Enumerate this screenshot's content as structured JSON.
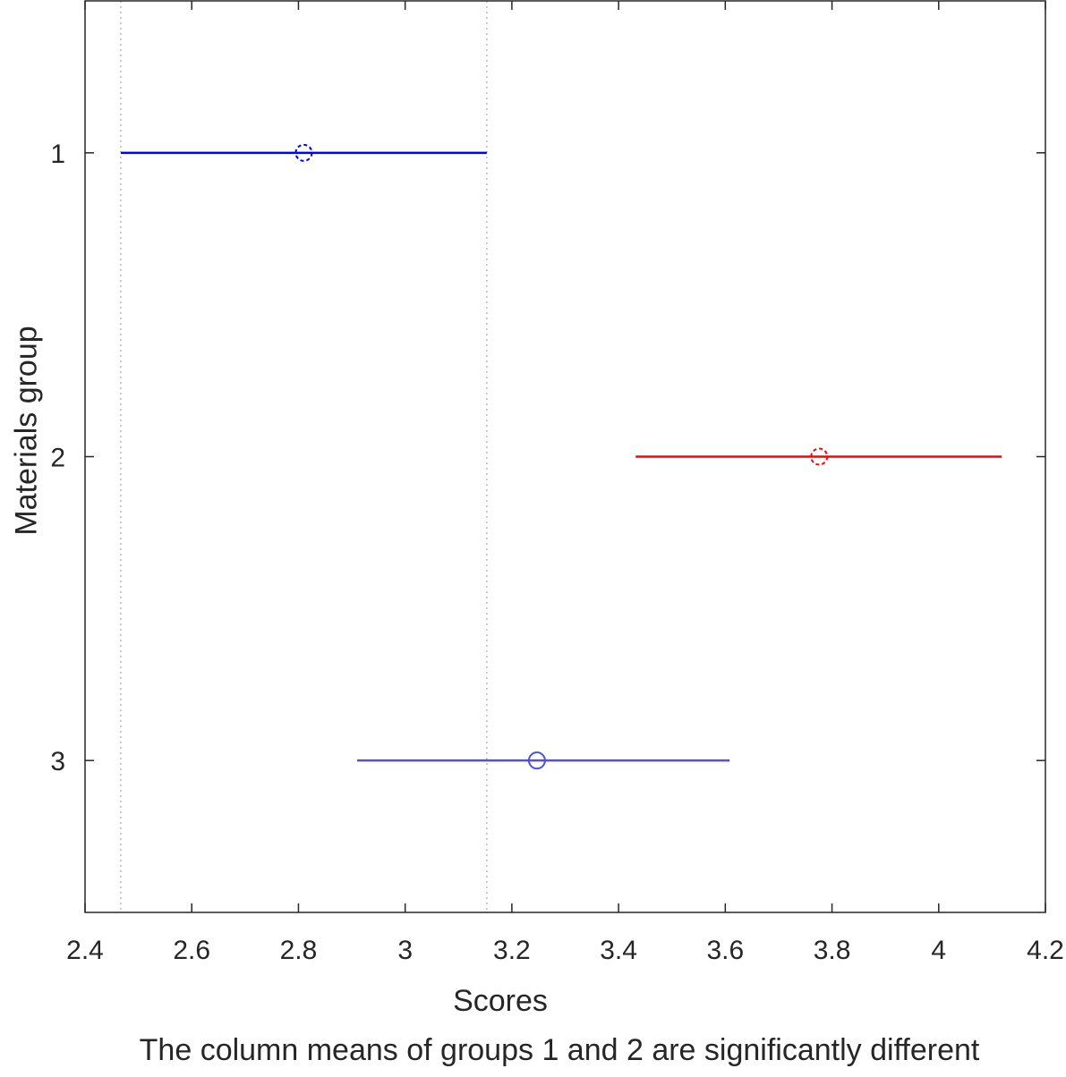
{
  "chart_data": {
    "type": "errorbar",
    "title": "",
    "xlabel": "Scores",
    "ylabel": "Materials group",
    "caption": "The column means of groups 1 and 2 are significantly different",
    "xlim": [
      2.4,
      4.2
    ],
    "ylim": [
      0.5,
      3.5
    ],
    "y_reversed": true,
    "xticks": [
      "2.4",
      "2.6",
      "2.8",
      "3",
      "3.2",
      "3.4",
      "3.6",
      "3.8",
      "4",
      "4.2"
    ],
    "yticks": [
      "1",
      "2",
      "3"
    ],
    "groups": [
      {
        "group": 1,
        "mean": 2.81,
        "lower": 2.467,
        "upper": 3.153,
        "color": "#0000ff"
      },
      {
        "group": 2,
        "mean": 3.776,
        "lower": 3.432,
        "upper": 4.118,
        "color": "#ff0000"
      },
      {
        "group": 3,
        "mean": 3.247,
        "lower": 2.91,
        "upper": 3.608,
        "color": "#5050e0"
      }
    ],
    "reference_lines": [
      2.467,
      3.153
    ],
    "grid": false
  }
}
